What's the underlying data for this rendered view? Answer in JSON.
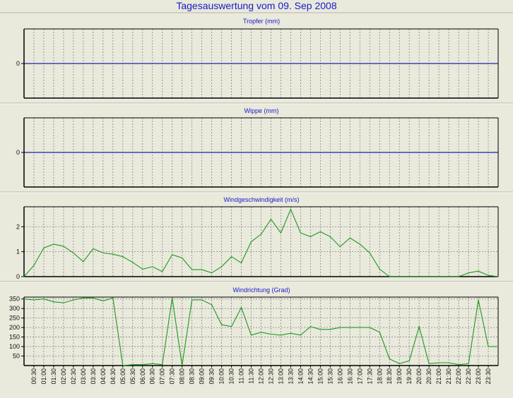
{
  "title": "Tagesauswertung vom 09. Sep 2008",
  "colors": {
    "background": "#e9e9dc",
    "title": "#1a1acc",
    "zero_line": "#2020a8",
    "series": "#1c9a1c",
    "grid": "#888888"
  },
  "x_ticks": [
    "00:30",
    "01:00",
    "01:30",
    "02:00",
    "02:30",
    "03:00",
    "03:30",
    "04:00",
    "04:30",
    "05:00",
    "05:30",
    "06:00",
    "06:30",
    "07:00",
    "07:30",
    "08:00",
    "08:30",
    "09:00",
    "09:30",
    "10:00",
    "10:30",
    "11:00",
    "11:30",
    "12:00",
    "12:30",
    "13:00",
    "13:30",
    "14:00",
    "14:30",
    "15:00",
    "15:30",
    "16:00",
    "16:30",
    "17:00",
    "17:30",
    "18:00",
    "18:30",
    "19:00",
    "19:30",
    "20:00",
    "20:30",
    "21:00",
    "21:30",
    "22:00",
    "22:30",
    "23:00",
    "23:30"
  ],
  "chart_data": [
    {
      "type": "line",
      "title": "Tropfer (mm)",
      "yticks": [
        0
      ],
      "ylim": [
        -1,
        1
      ],
      "grid": true,
      "flat_zero": true,
      "x": [],
      "values": []
    },
    {
      "type": "line",
      "title": "Wippe (mm)",
      "yticks": [
        0
      ],
      "ylim": [
        -1,
        1
      ],
      "grid": true,
      "flat_zero": true,
      "x": [],
      "values": []
    },
    {
      "type": "line",
      "title": "Windgeschwindigkeit (m/s)",
      "yticks": [
        0,
        1,
        2
      ],
      "ylim": [
        0,
        2.8
      ],
      "grid": true,
      "x": [
        "00:00",
        "00:30",
        "01:00",
        "01:30",
        "02:00",
        "02:30",
        "03:00",
        "03:30",
        "04:00",
        "04:30",
        "05:00",
        "05:30",
        "06:00",
        "06:30",
        "07:00",
        "07:30",
        "08:00",
        "08:30",
        "09:00",
        "09:30",
        "10:00",
        "10:30",
        "11:00",
        "11:30",
        "12:00",
        "12:30",
        "13:00",
        "13:30",
        "14:00",
        "14:30",
        "15:00",
        "15:30",
        "16:00",
        "16:30",
        "17:00",
        "17:30",
        "18:00",
        "18:30",
        "19:00",
        "19:30",
        "20:00",
        "20:30",
        "21:00",
        "21:30",
        "22:00",
        "22:30",
        "23:00",
        "23:30",
        "24:00"
      ],
      "values": [
        0.0,
        0.45,
        1.15,
        1.3,
        1.22,
        0.95,
        0.6,
        1.12,
        0.95,
        0.9,
        0.8,
        0.57,
        0.3,
        0.4,
        0.2,
        0.88,
        0.75,
        0.28,
        0.28,
        0.15,
        0.4,
        0.8,
        0.55,
        1.4,
        1.7,
        2.3,
        1.75,
        2.7,
        1.75,
        1.6,
        1.8,
        1.6,
        1.2,
        1.55,
        1.3,
        0.95,
        0.3,
        0.0,
        0.0,
        0.0,
        0.0,
        0.0,
        0.0,
        0.0,
        0.0,
        0.15,
        0.22,
        0.05,
        0.0
      ]
    },
    {
      "type": "line",
      "title": "Windrichtung (Grad)",
      "yticks": [
        50,
        100,
        150,
        200,
        250,
        300,
        350
      ],
      "ylim": [
        0,
        360
      ],
      "grid": true,
      "x": [
        "00:00",
        "00:30",
        "01:00",
        "01:30",
        "02:00",
        "02:30",
        "03:00",
        "03:30",
        "04:00",
        "04:30",
        "05:00",
        "05:30",
        "06:00",
        "06:30",
        "07:00",
        "07:30",
        "08:00",
        "08:30",
        "09:00",
        "09:30",
        "10:00",
        "10:30",
        "11:00",
        "11:30",
        "12:00",
        "12:30",
        "13:00",
        "13:30",
        "14:00",
        "14:30",
        "15:00",
        "15:30",
        "16:00",
        "16:30",
        "17:00",
        "17:30",
        "18:00",
        "18:30",
        "19:00",
        "19:30",
        "20:00",
        "20:30",
        "21:00",
        "21:30",
        "22:00",
        "22:30",
        "23:00",
        "23:30",
        "24:00"
      ],
      "values": [
        350,
        345,
        350,
        335,
        330,
        345,
        355,
        355,
        340,
        355,
        0,
        5,
        5,
        10,
        5,
        355,
        0,
        345,
        345,
        320,
        215,
        205,
        305,
        160,
        175,
        165,
        160,
        170,
        160,
        205,
        190,
        190,
        200,
        200,
        200,
        200,
        175,
        35,
        10,
        25,
        205,
        10,
        15,
        15,
        5,
        10,
        345,
        100,
        100
      ]
    }
  ]
}
